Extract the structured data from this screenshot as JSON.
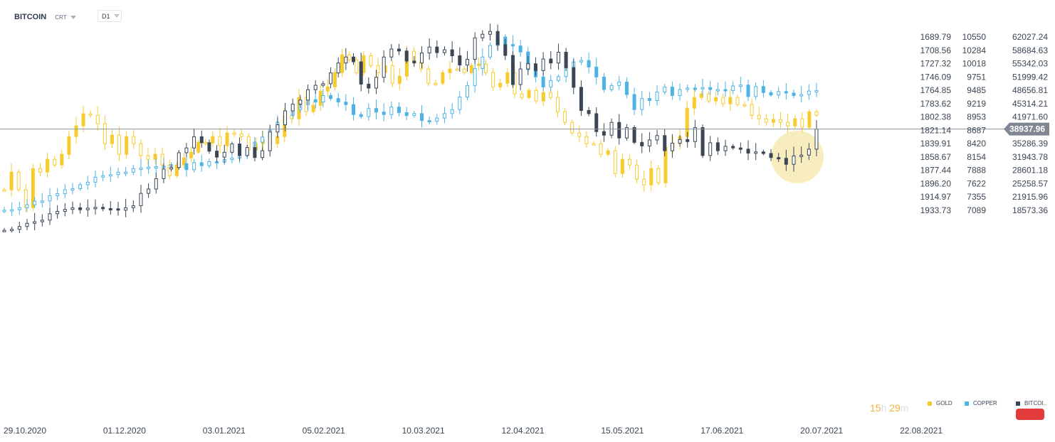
{
  "toolbar": {
    "symbol": "BITCOIN",
    "chart_type": "CRT",
    "timeframe": "D1"
  },
  "countdown": {
    "hours": "15",
    "h_unit": "h",
    "minutes": "29",
    "m_unit": "m"
  },
  "colors": {
    "gold": "#f7cb2e",
    "copper": "#4db3e6",
    "bitcoin": "#3a4756",
    "highlight": "#f5e6a3",
    "current_price_bg": "#7f8892"
  },
  "chart_data": {
    "type": "candlestick-overlay",
    "title": "",
    "price_columns": {
      "gold": [
        "1689.79",
        "1708.56",
        "1727.32",
        "1746.09",
        "1764.85",
        "1783.62",
        "1802.38",
        "1821.14",
        "1839.91",
        "1858.67",
        "1877.44",
        "1896.20",
        "1914.97",
        "1933.73"
      ],
      "copper": [
        "10550",
        "10284",
        "10018",
        "9751",
        "9485",
        "9219",
        "8953",
        "8687",
        "8420",
        "8154",
        "7888",
        "7622",
        "7355",
        "7089"
      ],
      "bitcoin": [
        "62027.24",
        "58684.63",
        "55342.03",
        "51999.42",
        "48656.81",
        "45314.21",
        "41971.60",
        "",
        "35286.39",
        "31943.78",
        "28601.18",
        "25258.57",
        "21915.96",
        "18573.36"
      ]
    },
    "current_price": "38937.96",
    "dates": [
      "29.10.2020",
      "01.12.2020",
      "03.01.2021",
      "05.02.2021",
      "10.03.2021",
      "12.04.2021",
      "15.05.2021",
      "17.06.2021",
      "20.07.2021",
      "22.08.2021"
    ],
    "series": [
      {
        "name": "GOLD",
        "color": "#f7cb2e",
        "close": [
          1905,
          1880,
          1905,
          1930,
          1875,
          1880,
          1862,
          1870,
          1855,
          1830,
          1815,
          1798,
          1800,
          1812,
          1840,
          1828,
          1855,
          1830,
          1840,
          1857,
          1862,
          1855,
          1870,
          1885,
          1870,
          1860,
          1852,
          1838,
          1839,
          1830,
          1843,
          1825,
          1826,
          1830,
          1849,
          1840,
          1834,
          1840,
          1830,
          1800,
          1805,
          1775,
          1795,
          1786,
          1766,
          1760,
          1740,
          1715,
          1722,
          1740,
          1716,
          1730,
          1740,
          1730,
          1755,
          1745,
          1710,
          1725,
          1735,
          1755,
          1755,
          1740,
          1735,
          1735,
          1740,
          1730,
          1728,
          1740,
          1760,
          1755,
          1740,
          1770,
          1775,
          1765,
          1780,
          1768,
          1775,
          1795,
          1810,
          1825,
          1830,
          1840,
          1840,
          1855,
          1850,
          1882,
          1862,
          1870,
          1890,
          1898,
          1875,
          1895,
          1845,
          1840,
          1830,
          1790,
          1775,
          1770,
          1780,
          1775,
          1784,
          1775,
          1785,
          1785,
          1800,
          1805,
          1810,
          1806,
          1810,
          1815,
          1805,
          1817,
          1795,
          1800
        ]
      },
      {
        "name": "COPPER",
        "color": "#4db3e6",
        "close": [
          7089,
          7100,
          7140,
          7200,
          7270,
          7275,
          7380,
          7420,
          7500,
          7520,
          7600,
          7650,
          7750,
          7780,
          7800,
          7850,
          7850,
          7920,
          7930,
          7950,
          7960,
          7970,
          8000,
          8020,
          7900,
          8040,
          7980,
          8060,
          8050,
          8100,
          8130,
          8180,
          8300,
          8450,
          8550,
          8690,
          8850,
          8980,
          9100,
          9200,
          9300,
          9250,
          9380,
          9320,
          9250,
          9200,
          9000,
          8960,
          9120,
          9050,
          9000,
          9150,
          9040,
          8980,
          9020,
          8880,
          8870,
          8930,
          9020,
          9100,
          9350,
          9580,
          9920,
          10150,
          10380,
          10550,
          10400,
          10370,
          10250,
          9900,
          9750,
          9550,
          9680,
          9760,
          9950,
          10050,
          10080,
          9950,
          9750,
          9500,
          9580,
          9650,
          9400,
          9100,
          9320,
          9280,
          9450,
          9550,
          9380,
          9500,
          9530,
          9520,
          9540,
          9500,
          9500,
          9480,
          9570,
          9590,
          9360,
          9560,
          9440,
          9390,
          9460,
          9430,
          9380,
          9400,
          9470,
          9480
        ]
      },
      {
        "name": "BITCOI..",
        "color": "#3a4756",
        "close": [
          13550,
          13800,
          14500,
          15300,
          15700,
          16100,
          17700,
          18300,
          18800,
          19200,
          18700,
          19100,
          19300,
          19000,
          18950,
          18600,
          19200,
          19700,
          22800,
          23900,
          26500,
          28900,
          29300,
          33000,
          34200,
          37000,
          35500,
          33400,
          31900,
          33100,
          35200,
          32300,
          34300,
          31800,
          33500,
          38200,
          40000,
          43500,
          45200,
          46200,
          48800,
          49900,
          50300,
          53000,
          55500,
          57000,
          55800,
          50200,
          49200,
          51900,
          57000,
          59000,
          58500,
          56000,
          55500,
          58000,
          59500,
          58100,
          58800,
          57300,
          55000,
          56400,
          61800,
          62700,
          63400,
          60100,
          57400,
          50100,
          54000,
          55300,
          53600,
          56500,
          55500,
          58200,
          54300,
          49400,
          43600,
          42800,
          38300,
          37400,
          40600,
          36700,
          39300,
          35600,
          34700,
          36200,
          37300,
          33500,
          35400,
          36300,
          35800,
          39300,
          32300,
          35500,
          33500,
          34600,
          34200,
          33900,
          32900,
          33200,
          32800,
          31800,
          31600,
          30100,
          32200,
          32400,
          33900,
          38937.96
        ]
      }
    ],
    "xlabel": "",
    "ylabel": "",
    "grid": false,
    "legend": "bottom-right"
  }
}
